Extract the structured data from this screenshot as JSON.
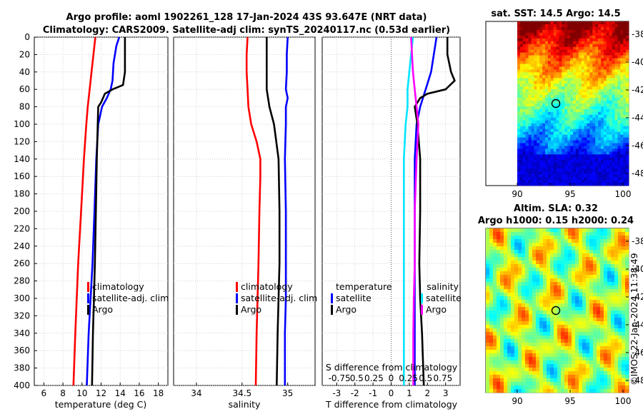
{
  "header": {
    "line1": "Argo profile: aoml 1902261_128 17-Jan-2024 43S 93.647E (NRT data)",
    "line2": "Climatology: CARS2009. Satellite-adj clim: synTS_20240117.nc (0.53d earlier)"
  },
  "colors": {
    "climatology": "#ff0000",
    "satellite": "#0000ff",
    "argo": "#000000",
    "sat_temp_diff": "#00e5ff",
    "sal_diff_clim": "#ff00ff"
  },
  "depth_ticks": [
    "0",
    "20",
    "40",
    "60",
    "80",
    "100",
    "120",
    "140",
    "160",
    "180",
    "200",
    "220",
    "240",
    "260",
    "280",
    "300",
    "320",
    "340",
    "360",
    "380",
    "400"
  ],
  "chart_data": [
    {
      "type": "line",
      "name": "temperature-profile",
      "xlabel": "temperature (deg C)",
      "xlim": [
        5,
        19
      ],
      "ylim": [
        400,
        0
      ],
      "xticks": [
        "6",
        "8",
        "10",
        "12",
        "14",
        "16",
        "18"
      ],
      "legend": [
        "climatology",
        "satellite-adj. clim",
        "Argo"
      ],
      "series": [
        {
          "name": "climatology",
          "depth": [
            0,
            20,
            40,
            60,
            80,
            100,
            140,
            200,
            260,
            300,
            340,
            400
          ],
          "values": [
            11.4,
            11.2,
            11.0,
            10.8,
            10.6,
            10.45,
            10.2,
            9.9,
            9.6,
            9.45,
            9.3,
            9.1
          ]
        },
        {
          "name": "satellite-adj. clim",
          "depth": [
            0,
            10,
            30,
            50,
            60,
            70,
            80,
            100,
            140,
            200,
            260,
            300,
            340,
            400
          ],
          "values": [
            13.9,
            13.6,
            13.3,
            13.2,
            13.0,
            12.6,
            12.1,
            11.7,
            11.5,
            11.3,
            11.1,
            10.9,
            10.7,
            10.5
          ]
        },
        {
          "name": "Argo",
          "depth": [
            0,
            40,
            55,
            60,
            65,
            75,
            80,
            100,
            140,
            200,
            260,
            300,
            340,
            400
          ],
          "values": [
            14.5,
            14.5,
            14.3,
            13.2,
            12.4,
            12.0,
            11.7,
            11.65,
            11.55,
            11.45,
            11.35,
            11.25,
            11.15,
            11.05
          ]
        }
      ]
    },
    {
      "type": "line",
      "name": "salinity-profile",
      "xlabel": "salinity",
      "xlim": [
        33.75,
        35.3
      ],
      "ylim": [
        400,
        0
      ],
      "xticks": [
        "34",
        "34.5",
        "35"
      ],
      "legend": [
        "climatology",
        "satellite-adj. clim",
        "Argo"
      ],
      "series": [
        {
          "name": "climatology",
          "depth": [
            0,
            20,
            40,
            60,
            80,
            100,
            120,
            140,
            160,
            200,
            260,
            300,
            340,
            400
          ],
          "values": [
            34.56,
            34.55,
            34.55,
            34.56,
            34.57,
            34.6,
            34.66,
            34.7,
            34.7,
            34.69,
            34.68,
            34.67,
            34.66,
            34.65
          ]
        },
        {
          "name": "satellite-adj. clim",
          "depth": [
            0,
            20,
            40,
            60,
            70,
            80,
            100,
            140,
            200,
            260,
            300,
            340,
            400
          ],
          "values": [
            35.0,
            34.99,
            34.99,
            34.98,
            35.0,
            34.98,
            34.98,
            34.97,
            34.98,
            34.98,
            34.98,
            34.97,
            34.97
          ]
        },
        {
          "name": "Argo",
          "depth": [
            0,
            40,
            60,
            80,
            100,
            140,
            200,
            260,
            300,
            340,
            400
          ],
          "values": [
            34.77,
            34.77,
            34.77,
            34.8,
            34.85,
            34.9,
            34.91,
            34.91,
            34.9,
            34.89,
            34.88
          ]
        }
      ]
    },
    {
      "type": "line",
      "name": "difference-from-climatology",
      "xlabel": "T difference from climatology",
      "xlabel_top": "S difference from climatology",
      "xlim": [
        -3.8,
        3.8
      ],
      "ylim": [
        400,
        0
      ],
      "xticks": [
        "-3",
        "-2",
        "-1",
        "0",
        "1",
        "2",
        "3"
      ],
      "xticks_top": [
        "-0.75",
        "0.5",
        "0.25",
        "0",
        "0.25",
        "0.5",
        "0.75"
      ],
      "legend_left_title": "temperature",
      "legend_right_title": "salinity",
      "legend": [
        "satellite",
        "Argo"
      ],
      "series": [
        {
          "name": "satellite T diff",
          "depth": [
            0,
            40,
            60,
            80,
            100,
            140,
            200,
            260,
            300,
            340,
            400
          ],
          "values": [
            2.5,
            2.2,
            1.9,
            1.6,
            1.4,
            1.3,
            1.3,
            1.3,
            1.3,
            1.3,
            1.3
          ]
        },
        {
          "name": "Argo T diff",
          "depth": [
            0,
            20,
            40,
            50,
            60,
            65,
            70,
            80,
            100,
            140,
            200,
            260,
            300,
            340,
            400
          ],
          "values": [
            3.1,
            3.1,
            3.3,
            3.5,
            3.0,
            2.0,
            1.6,
            1.3,
            1.45,
            1.6,
            1.6,
            1.55,
            1.6,
            1.7,
            1.8
          ]
        },
        {
          "name": "satellite S diff",
          "depth": [
            0,
            40,
            60,
            80,
            100,
            140,
            200,
            260,
            300,
            340,
            400
          ],
          "values": [
            1.2,
            1.0,
            0.9,
            0.9,
            0.8,
            0.7,
            0.7,
            0.7,
            0.7,
            0.7,
            0.7
          ]
        },
        {
          "name": "Argo S diff",
          "depth": [
            0,
            40,
            60,
            80,
            100,
            140,
            200,
            260,
            300,
            340,
            400
          ],
          "values": [
            1.1,
            1.2,
            1.3,
            1.4,
            1.5,
            1.4,
            1.3,
            1.3,
            1.25,
            1.22,
            1.22
          ]
        }
      ]
    },
    {
      "type": "heatmap",
      "name": "sat-sst-map",
      "title": "sat. SST: 14.5 Argo: 14.5",
      "xticks": [
        "90",
        "95",
        "100"
      ],
      "yticks": [
        "-38",
        "-40",
        "-42",
        "-44",
        "-46",
        "-48"
      ]
    },
    {
      "type": "heatmap",
      "name": "altim-sla-map",
      "title1": "Altim. SLA: 0.32",
      "title2": "Argo h1000: 0.15 h2000: 0.24",
      "xticks": [
        "90",
        "95",
        "100"
      ],
      "yticks": [
        "-38",
        "-40",
        "-42",
        "-44",
        "-46",
        "-48"
      ]
    }
  ],
  "credit": "©IMOS 22-Jan-2024 11:38:49"
}
